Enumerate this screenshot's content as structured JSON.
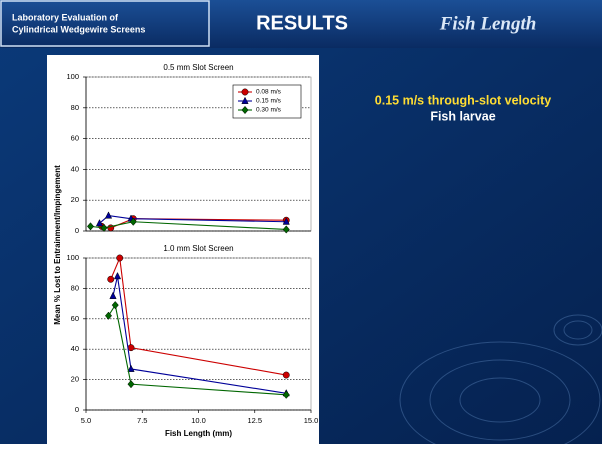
{
  "header": {
    "title_lines": [
      "Laboratory Evaluation of",
      "Cylindrical Wedgewire Screens"
    ],
    "section": "RESULTS",
    "topic": "Fish Length"
  },
  "side_text": {
    "line1": "0.15 m/s through-slot velocity",
    "line2": "Fish larvae"
  },
  "chart_data": [
    {
      "type": "line",
      "title": "0.5 mm Slot Screen",
      "xlim": [
        5,
        15
      ],
      "ylim": [
        0,
        100
      ],
      "yticks": [
        0,
        20,
        40,
        60,
        80,
        100
      ],
      "grid": true,
      "legend": "upper right",
      "series": [
        {
          "name": "0.08 m/s",
          "color": "#cc0000",
          "marker": "circle",
          "x": [
            5.7,
            6.1,
            7.1,
            13.9
          ],
          "values": [
            3,
            2,
            8,
            7
          ]
        },
        {
          "name": "0.15 m/s",
          "color": "#000099",
          "marker": "triangle",
          "x": [
            5.6,
            6.0,
            7.0,
            13.9
          ],
          "values": [
            5,
            10,
            8,
            6
          ]
        },
        {
          "name": "0.30 m/s",
          "color": "#006600",
          "marker": "diamond",
          "x": [
            5.2,
            5.8,
            7.1,
            13.9
          ],
          "values": [
            3,
            2,
            6,
            1
          ]
        }
      ]
    },
    {
      "type": "line",
      "title": "1.0 mm Slot Screen",
      "ylabel": "Mean % Lost to Entrainment/Impingement",
      "xlabel": "Fish Length (mm)",
      "xlim": [
        5,
        15
      ],
      "xticks": [
        {
          "value": 5,
          "label": "5.0"
        },
        {
          "value": 7.5,
          "label": "7.5"
        },
        {
          "value": 10,
          "label": "10.0"
        },
        {
          "value": 12.5,
          "label": "12.5"
        },
        {
          "value": 15,
          "label": "15.0"
        }
      ],
      "ylim": [
        0,
        100
      ],
      "yticks": [
        0,
        20,
        40,
        60,
        80,
        100
      ],
      "grid": true,
      "series": [
        {
          "color": "#cc0000",
          "marker": "circle",
          "x": [
            6.1,
            6.5,
            7.0,
            13.9
          ],
          "values": [
            86,
            100,
            41,
            23
          ]
        },
        {
          "color": "#000099",
          "marker": "triangle",
          "x": [
            6.2,
            6.4,
            7.0,
            13.9
          ],
          "values": [
            75,
            88,
            27,
            11
          ]
        },
        {
          "color": "#006600",
          "marker": "diamond",
          "x": [
            6.0,
            6.3,
            7.0,
            13.9
          ],
          "values": [
            62,
            69,
            17,
            10
          ]
        }
      ]
    }
  ]
}
